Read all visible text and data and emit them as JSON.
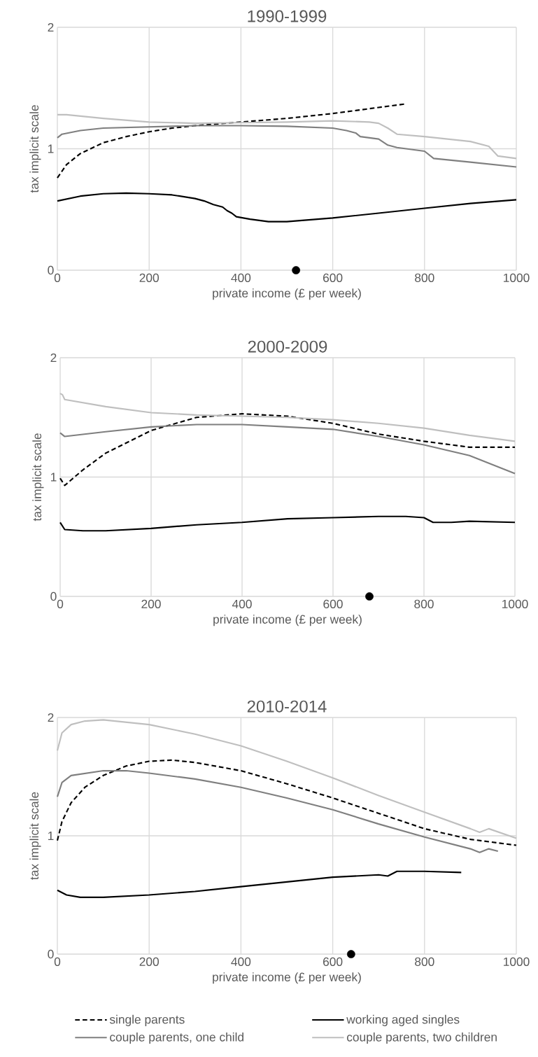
{
  "chart_data": [
    {
      "type": "line",
      "title": "1990-1999",
      "xlabel": "private income (£ per week)",
      "ylabel": "tax implicit scale",
      "xlim": [
        0,
        1000
      ],
      "ylim": [
        0,
        2
      ],
      "xticks": [
        0,
        200,
        400,
        600,
        800,
        1000
      ],
      "yticks": [
        0,
        1,
        2
      ],
      "grid": true,
      "legend": false,
      "series": [
        {
          "color": "#000000",
          "line_style": "dashed",
          "x": [
            0,
            20,
            50,
            100,
            150,
            200,
            250,
            300,
            400,
            500,
            600,
            700,
            760
          ],
          "values": [
            0.76,
            0.87,
            0.96,
            1.05,
            1.1,
            1.14,
            1.17,
            1.19,
            1.22,
            1.25,
            1.29,
            1.34,
            1.37
          ]
        },
        {
          "color": "#000000",
          "line_style": "solid",
          "x": [
            0,
            50,
            100,
            150,
            200,
            250,
            300,
            320,
            340,
            360,
            370,
            380,
            390,
            420,
            460,
            500,
            600,
            700,
            800,
            900,
            1000
          ],
          "values": [
            0.57,
            0.61,
            0.63,
            0.635,
            0.63,
            0.62,
            0.59,
            0.57,
            0.54,
            0.52,
            0.49,
            0.47,
            0.44,
            0.42,
            0.4,
            0.4,
            0.43,
            0.47,
            0.51,
            0.55,
            0.58
          ]
        },
        {
          "color": "#7f7f7f",
          "line_style": "solid",
          "x": [
            0,
            10,
            50,
            100,
            200,
            300,
            400,
            500,
            600,
            630,
            650,
            660,
            700,
            720,
            740,
            800,
            820,
            900,
            1000
          ],
          "values": [
            1.09,
            1.12,
            1.15,
            1.17,
            1.18,
            1.19,
            1.19,
            1.185,
            1.17,
            1.15,
            1.13,
            1.1,
            1.08,
            1.03,
            1.01,
            0.98,
            0.92,
            0.89,
            0.85
          ]
        },
        {
          "color": "#bfbfbf",
          "line_style": "solid",
          "x": [
            0,
            20,
            100,
            200,
            300,
            400,
            500,
            600,
            680,
            700,
            720,
            740,
            800,
            900,
            940,
            960,
            1000
          ],
          "values": [
            1.28,
            1.28,
            1.25,
            1.22,
            1.21,
            1.215,
            1.22,
            1.23,
            1.22,
            1.21,
            1.17,
            1.12,
            1.1,
            1.06,
            1.02,
            0.94,
            0.92
          ]
        },
        {
          "type": "scatter",
          "marker": "circle",
          "color": "#000000",
          "x": [
            520
          ],
          "values": [
            0
          ]
        }
      ]
    },
    {
      "type": "line",
      "title": "2000-2009",
      "xlabel": "private income (£ per week)",
      "ylabel": "tax implicit scale",
      "xlim": [
        0,
        1000
      ],
      "ylim": [
        0,
        2
      ],
      "xticks": [
        0,
        200,
        400,
        600,
        800,
        1000
      ],
      "yticks": [
        0,
        1,
        2
      ],
      "grid": true,
      "legend": false,
      "series": [
        {
          "color": "#000000",
          "line_style": "dashed",
          "x": [
            0,
            10,
            50,
            100,
            200,
            300,
            400,
            500,
            600,
            700,
            800,
            900,
            1000
          ],
          "values": [
            0.99,
            0.93,
            1.06,
            1.2,
            1.39,
            1.5,
            1.53,
            1.51,
            1.45,
            1.36,
            1.3,
            1.25,
            1.25
          ]
        },
        {
          "color": "#000000",
          "line_style": "solid",
          "x": [
            0,
            10,
            50,
            100,
            200,
            300,
            400,
            500,
            600,
            700,
            760,
            800,
            820,
            860,
            900,
            1000
          ],
          "values": [
            0.62,
            0.56,
            0.55,
            0.55,
            0.57,
            0.6,
            0.62,
            0.65,
            0.66,
            0.67,
            0.67,
            0.66,
            0.62,
            0.62,
            0.63,
            0.62
          ]
        },
        {
          "color": "#7f7f7f",
          "line_style": "solid",
          "x": [
            0,
            10,
            100,
            200,
            300,
            400,
            500,
            600,
            700,
            800,
            900,
            1000
          ],
          "values": [
            1.37,
            1.34,
            1.38,
            1.42,
            1.44,
            1.44,
            1.42,
            1.4,
            1.34,
            1.27,
            1.18,
            1.03
          ]
        },
        {
          "color": "#bfbfbf",
          "line_style": "solid",
          "x": [
            0,
            5,
            10,
            100,
            200,
            300,
            400,
            500,
            600,
            700,
            800,
            900,
            1000
          ],
          "values": [
            1.7,
            1.69,
            1.65,
            1.59,
            1.54,
            1.52,
            1.51,
            1.5,
            1.48,
            1.45,
            1.41,
            1.35,
            1.3
          ]
        },
        {
          "type": "scatter",
          "marker": "circle",
          "color": "#000000",
          "x": [
            680
          ],
          "values": [
            0
          ]
        }
      ]
    },
    {
      "type": "line",
      "title": "2010-2014",
      "xlabel": "private income (£ per week)",
      "ylabel": "tax implicit scale",
      "xlim": [
        0,
        1000
      ],
      "ylim": [
        0,
        2
      ],
      "xticks": [
        0,
        200,
        400,
        600,
        800,
        1000
      ],
      "yticks": [
        0,
        1,
        2
      ],
      "grid": true,
      "legend": "bottom",
      "series": [
        {
          "name": "single parents",
          "color": "#000000",
          "line_style": "dashed",
          "x": [
            0,
            10,
            30,
            60,
            100,
            150,
            200,
            250,
            300,
            400,
            500,
            600,
            700,
            800,
            900,
            1000
          ],
          "values": [
            0.96,
            1.12,
            1.28,
            1.41,
            1.51,
            1.59,
            1.63,
            1.64,
            1.62,
            1.55,
            1.44,
            1.32,
            1.19,
            1.06,
            0.97,
            0.92
          ]
        },
        {
          "name": "working aged singles",
          "color": "#000000",
          "line_style": "solid",
          "x": [
            0,
            20,
            50,
            100,
            200,
            300,
            400,
            500,
            600,
            700,
            720,
            740,
            800,
            880
          ],
          "values": [
            0.54,
            0.5,
            0.48,
            0.48,
            0.5,
            0.53,
            0.57,
            0.61,
            0.65,
            0.67,
            0.66,
            0.7,
            0.7,
            0.69
          ]
        },
        {
          "name": "couple parents, one child",
          "color": "#7f7f7f",
          "line_style": "solid",
          "x": [
            0,
            10,
            30,
            100,
            150,
            200,
            300,
            400,
            500,
            600,
            700,
            800,
            900,
            920,
            940,
            960
          ],
          "values": [
            1.33,
            1.45,
            1.51,
            1.55,
            1.55,
            1.53,
            1.48,
            1.41,
            1.32,
            1.22,
            1.1,
            0.99,
            0.89,
            0.86,
            0.89,
            0.87
          ]
        },
        {
          "name": "couple parents, two children",
          "color": "#bfbfbf",
          "line_style": "solid",
          "x": [
            0,
            10,
            30,
            60,
            100,
            200,
            300,
            400,
            500,
            600,
            700,
            800,
            900,
            920,
            940,
            1000
          ],
          "values": [
            1.72,
            1.87,
            1.94,
            1.97,
            1.98,
            1.94,
            1.86,
            1.76,
            1.63,
            1.49,
            1.34,
            1.2,
            1.06,
            1.03,
            1.06,
            0.98
          ]
        },
        {
          "type": "scatter",
          "marker": "circle",
          "color": "#000000",
          "x": [
            640
          ],
          "values": [
            0
          ]
        }
      ]
    }
  ]
}
